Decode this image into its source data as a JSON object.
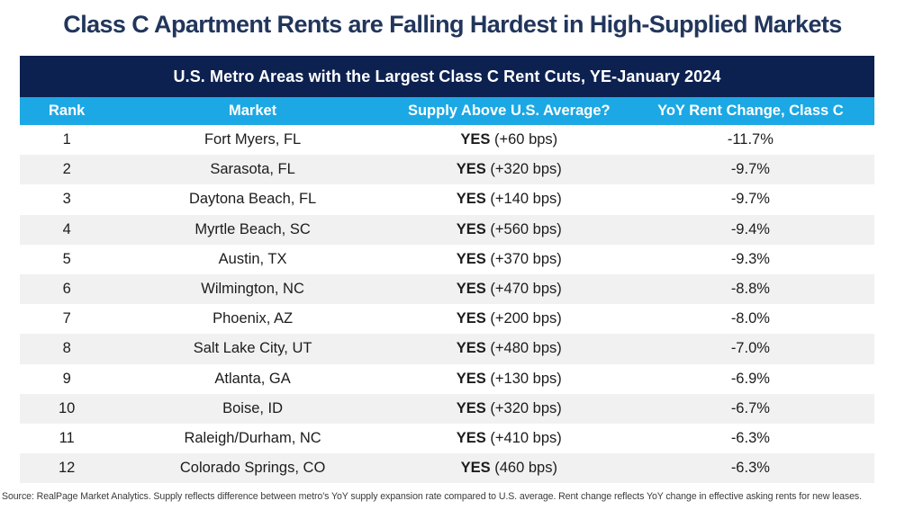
{
  "page_title": "Class C Apartment Rents are Falling Hardest in High-Supplied Markets",
  "table": {
    "banner": "U.S. Metro Areas with the Largest Class C Rent Cuts, YE-January 2024",
    "columns": [
      "Rank",
      "Market",
      "Supply Above U.S. Average?",
      "YoY Rent Change, Class C"
    ],
    "rows": [
      {
        "rank": "1",
        "market": "Fort Myers, FL",
        "supply_flag": "YES",
        "supply_detail": "(+60 bps)",
        "rent_change": "-11.7%"
      },
      {
        "rank": "2",
        "market": "Sarasota, FL",
        "supply_flag": "YES",
        "supply_detail": "(+320 bps)",
        "rent_change": "-9.7%"
      },
      {
        "rank": "3",
        "market": "Daytona Beach, FL",
        "supply_flag": "YES",
        "supply_detail": "(+140 bps)",
        "rent_change": "-9.7%"
      },
      {
        "rank": "4",
        "market": "Myrtle Beach, SC",
        "supply_flag": "YES",
        "supply_detail": "(+560 bps)",
        "rent_change": "-9.4%"
      },
      {
        "rank": "5",
        "market": "Austin, TX",
        "supply_flag": "YES",
        "supply_detail": "(+370 bps)",
        "rent_change": "-9.3%"
      },
      {
        "rank": "6",
        "market": "Wilmington, NC",
        "supply_flag": "YES",
        "supply_detail": "(+470 bps)",
        "rent_change": "-8.8%"
      },
      {
        "rank": "7",
        "market": "Phoenix, AZ",
        "supply_flag": "YES",
        "supply_detail": "(+200 bps)",
        "rent_change": "-8.0%"
      },
      {
        "rank": "8",
        "market": "Salt Lake City, UT",
        "supply_flag": "YES",
        "supply_detail": "(+480 bps)",
        "rent_change": "-7.0%"
      },
      {
        "rank": "9",
        "market": "Atlanta, GA",
        "supply_flag": "YES",
        "supply_detail": "(+130 bps)",
        "rent_change": "-6.9%"
      },
      {
        "rank": "10",
        "market": "Boise, ID",
        "supply_flag": "YES",
        "supply_detail": "(+320 bps)",
        "rent_change": "-6.7%"
      },
      {
        "rank": "11",
        "market": "Raleigh/Durham, NC",
        "supply_flag": "YES",
        "supply_detail": "(+410 bps)",
        "rent_change": "-6.3%"
      },
      {
        "rank": "12",
        "market": "Colorado Springs, CO",
        "supply_flag": "YES",
        "supply_detail": "(460 bps)",
        "rent_change": "-6.3%"
      }
    ]
  },
  "footnote": "Source: RealPage Market Analytics. Supply reflects difference between metro's YoY supply expansion rate compared to U.S. average. Rent change reflects YoY change in effective asking rents for new leases.",
  "colors": {
    "title_navy": "#22365c",
    "banner_navy": "#0d2150",
    "header_cyan": "#1ba8e4",
    "alt_row_gray": "#f1f1f1",
    "cell_text": "#1c1c1c"
  },
  "chart_data": {
    "type": "table",
    "title": "U.S. Metro Areas with the Largest Class C Rent Cuts, YE-January 2024",
    "columns": [
      "Rank",
      "Market",
      "Supply Above U.S. Average?",
      "YoY Rent Change, Class C"
    ],
    "rows": [
      [
        1,
        "Fort Myers, FL",
        "YES (+60 bps)",
        -11.7
      ],
      [
        2,
        "Sarasota, FL",
        "YES (+320 bps)",
        -9.7
      ],
      [
        3,
        "Daytona Beach, FL",
        "YES (+140 bps)",
        -9.7
      ],
      [
        4,
        "Myrtle Beach, SC",
        "YES (+560 bps)",
        -9.4
      ],
      [
        5,
        "Austin, TX",
        "YES (+370 bps)",
        -9.3
      ],
      [
        6,
        "Wilmington, NC",
        "YES (+470 bps)",
        -8.8
      ],
      [
        7,
        "Phoenix, AZ",
        "YES (+200 bps)",
        -8.0
      ],
      [
        8,
        "Salt Lake City, UT",
        "YES (+480 bps)",
        -7.0
      ],
      [
        9,
        "Atlanta, GA",
        "YES (+130 bps)",
        -6.9
      ],
      [
        10,
        "Boise, ID",
        "YES (+320 bps)",
        -6.7
      ],
      [
        11,
        "Raleigh/Durham, NC",
        "YES (+410 bps)",
        -6.3
      ],
      [
        12,
        "Colorado Springs, CO",
        "YES (460 bps)",
        -6.3
      ]
    ],
    "supply_above_us_avg_bps": [
      60,
      320,
      140,
      560,
      370,
      470,
      200,
      480,
      130,
      320,
      410,
      460
    ],
    "rent_change_pct": [
      -11.7,
      -9.7,
      -9.7,
      -9.4,
      -9.3,
      -8.8,
      -8.0,
      -7.0,
      -6.9,
      -6.7,
      -6.3,
      -6.3
    ]
  }
}
